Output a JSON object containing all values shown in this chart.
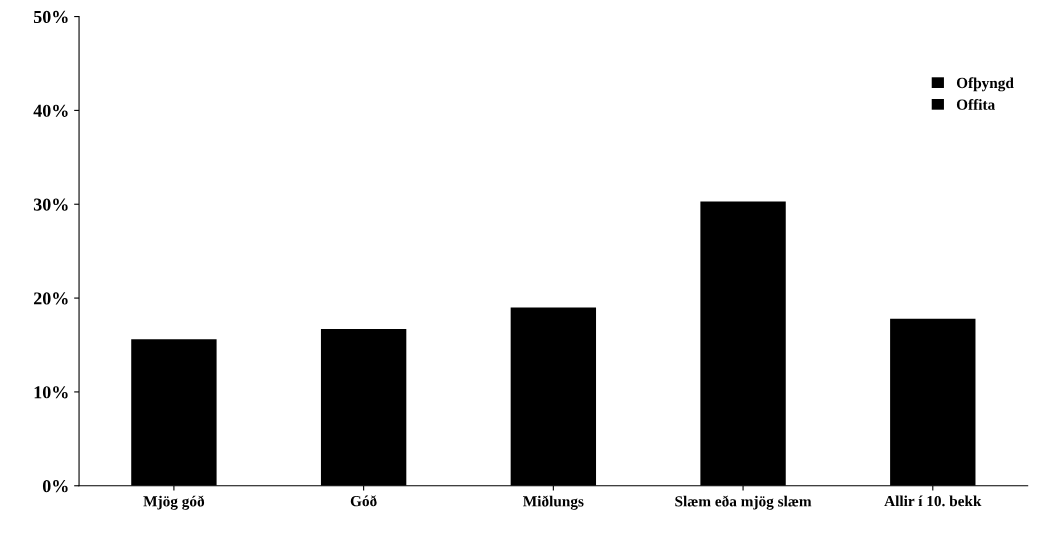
{
  "chart_data": {
    "type": "bar",
    "categories": [
      "Mjög góð",
      "Góð",
      "Miðlungs",
      "Slæm eða mjög slæm",
      "Allir í 10. bekk"
    ],
    "series": [
      {
        "name": "Ofþyngd",
        "color": "#000000",
        "values": [
          15.6,
          16.7,
          19.0,
          30.3,
          17.8
        ]
      },
      {
        "name": "Offita",
        "color": "#000000",
        "values": [
          null,
          null,
          null,
          null,
          null
        ]
      }
    ],
    "ylim": [
      0,
      50
    ],
    "yticks": [
      {
        "value": 0,
        "label": "0%"
      },
      {
        "value": 10,
        "label": "10%"
      },
      {
        "value": 20,
        "label": "20%"
      },
      {
        "value": 30,
        "label": "30%"
      },
      {
        "value": 40,
        "label": "40%"
      },
      {
        "value": 50,
        "label": "50%"
      }
    ],
    "grid": false,
    "legend": "top right"
  }
}
